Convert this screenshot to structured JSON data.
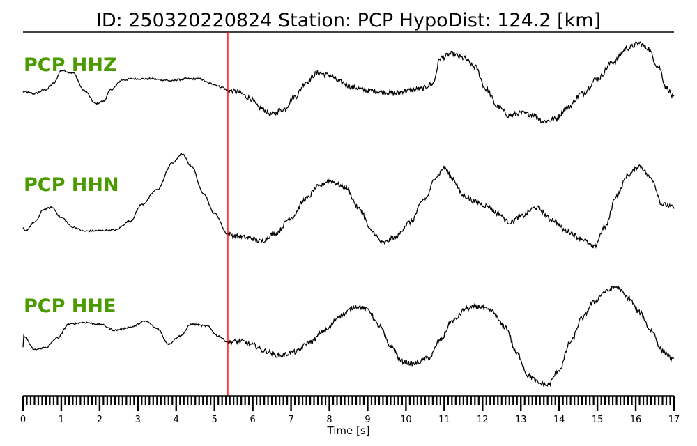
{
  "title": "ID: 250320220824   Station: PCP   HypoDist:   124.2 [km]",
  "chart_data": {
    "type": "line",
    "title": "ID: 250320220824   Station: PCP   HypoDist:   124.2 [km]",
    "xlabel": "Time [s]",
    "ylabel": "",
    "xlim": [
      0,
      17
    ],
    "x_ticks": [
      "0",
      "1",
      "2",
      "3",
      "4",
      "5",
      "6",
      "7",
      "8",
      "9",
      "10",
      "11",
      "12",
      "13",
      "14",
      "15",
      "16",
      "17"
    ],
    "pick_time": 5.35,
    "pick_color": "#ff0000",
    "label_color": "#4a9a00",
    "trace_color": "#000000",
    "grid": false,
    "series": [
      {
        "name": "PCP HHZ",
        "x": [
          0,
          0.3,
          0.6,
          0.8,
          1.0,
          1.3,
          1.6,
          1.9,
          2.1,
          2.3,
          2.6,
          2.9,
          3.3,
          3.7,
          3.9,
          4.0,
          4.3,
          4.6,
          4.9,
          5.2,
          5.35,
          5.6,
          5.9,
          6.2,
          6.5,
          6.8,
          7.1,
          7.4,
          7.7,
          8.0,
          8.3,
          8.6,
          9.0,
          9.4,
          9.7,
          10.0,
          10.4,
          10.7,
          10.9,
          11.2,
          11.5,
          11.8,
          12.1,
          12.4,
          12.7,
          13.0,
          13.3,
          13.6,
          13.9,
          14.2,
          14.6,
          15.0,
          15.4,
          15.8,
          16.1,
          16.3,
          16.6,
          16.8,
          17.0
        ],
        "values": [
          -0.02,
          -0.05,
          0.02,
          0.12,
          0.34,
          0.3,
          0.0,
          -0.22,
          -0.18,
          0.02,
          0.18,
          0.2,
          0.2,
          0.18,
          0.16,
          0.18,
          0.2,
          0.2,
          0.12,
          0.06,
          0.0,
          -0.02,
          -0.12,
          -0.3,
          -0.4,
          -0.32,
          -0.1,
          0.15,
          0.3,
          0.26,
          0.14,
          0.06,
          0.0,
          -0.02,
          -0.05,
          0.0,
          0.03,
          0.12,
          0.55,
          0.62,
          0.55,
          0.4,
          0.02,
          -0.28,
          -0.42,
          -0.38,
          -0.4,
          -0.52,
          -0.48,
          -0.3,
          -0.05,
          0.2,
          0.48,
          0.72,
          0.8,
          0.72,
          0.4,
          0.05,
          -0.12
        ],
        "noise": 0.045
      },
      {
        "name": "PCP HHN",
        "x": [
          0,
          0.05,
          0.3,
          0.55,
          0.75,
          1.0,
          1.3,
          1.6,
          2.0,
          2.4,
          2.8,
          3.1,
          3.5,
          3.9,
          4.15,
          4.4,
          4.7,
          5.0,
          5.35,
          5.6,
          5.9,
          6.2,
          6.6,
          7.0,
          7.4,
          7.7,
          8.0,
          8.4,
          8.8,
          9.1,
          9.4,
          9.7,
          10.1,
          10.5,
          10.8,
          11.0,
          11.2,
          11.5,
          11.8,
          12.1,
          12.4,
          12.7,
          13.0,
          13.4,
          13.8,
          14.2,
          14.6,
          14.9,
          15.2,
          15.5,
          15.8,
          16.1,
          16.4,
          16.7,
          17.0
        ],
        "values": [
          -0.3,
          -0.35,
          -0.2,
          0.02,
          0.05,
          -0.12,
          -0.28,
          -0.35,
          -0.34,
          -0.33,
          -0.18,
          0.1,
          0.35,
          0.8,
          0.95,
          0.75,
          0.3,
          -0.05,
          -0.4,
          -0.44,
          -0.46,
          -0.52,
          -0.38,
          -0.12,
          0.2,
          0.4,
          0.5,
          0.4,
          0.02,
          -0.35,
          -0.55,
          -0.46,
          -0.2,
          0.2,
          0.58,
          0.72,
          0.55,
          0.25,
          0.15,
          0.08,
          -0.05,
          -0.2,
          -0.1,
          0.05,
          -0.15,
          -0.35,
          -0.48,
          -0.62,
          -0.28,
          0.25,
          0.6,
          0.75,
          0.55,
          0.1,
          0.05
        ],
        "noise": 0.04
      },
      {
        "name": "PCP HHE",
        "x": [
          0,
          0.02,
          0.3,
          0.6,
          0.9,
          1.2,
          1.6,
          2.0,
          2.4,
          2.8,
          3.2,
          3.5,
          3.8,
          4.1,
          4.4,
          4.8,
          5.1,
          5.35,
          5.7,
          6.0,
          6.3,
          6.7,
          7.1,
          7.5,
          7.9,
          8.3,
          8.7,
          9.0,
          9.3,
          9.6,
          9.9,
          10.2,
          10.6,
          10.9,
          11.2,
          11.6,
          11.9,
          12.2,
          12.6,
          12.9,
          13.2,
          13.5,
          13.7,
          14.0,
          14.3,
          14.6,
          14.9,
          15.2,
          15.5,
          15.8,
          16.1,
          16.4,
          16.7,
          17.0
        ],
        "values": [
          -0.25,
          -0.05,
          -0.28,
          -0.24,
          -0.08,
          0.15,
          0.18,
          0.15,
          0.05,
          0.1,
          0.2,
          0.08,
          -0.18,
          -0.05,
          0.15,
          0.12,
          -0.05,
          -0.15,
          -0.14,
          -0.2,
          -0.3,
          -0.38,
          -0.32,
          -0.15,
          0.05,
          0.3,
          0.45,
          0.4,
          0.12,
          -0.22,
          -0.48,
          -0.52,
          -0.42,
          -0.12,
          0.2,
          0.42,
          0.45,
          0.38,
          0.1,
          -0.35,
          -0.72,
          -0.85,
          -0.88,
          -0.62,
          -0.15,
          0.25,
          0.52,
          0.7,
          0.78,
          0.6,
          0.35,
          0.05,
          -0.3,
          -0.46
        ],
        "noise": 0.04
      }
    ]
  }
}
